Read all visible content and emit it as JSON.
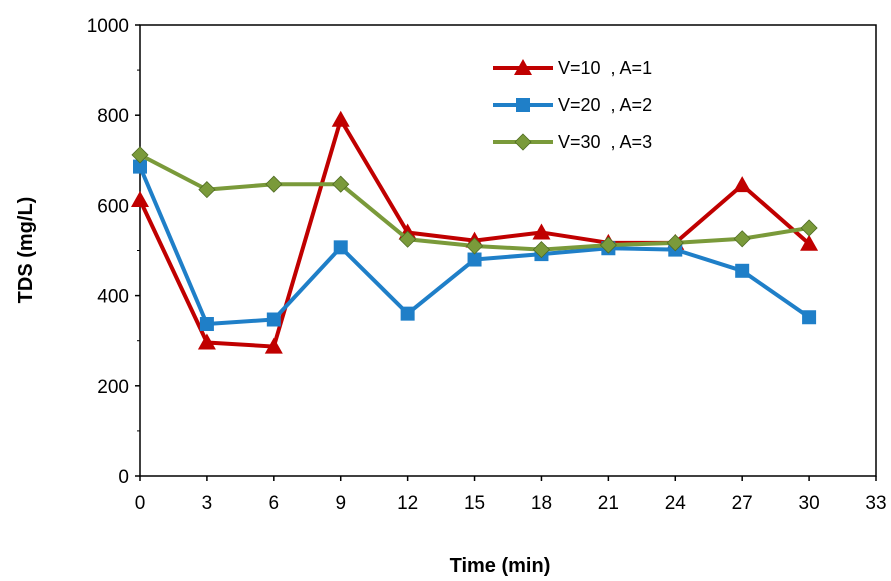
{
  "chart_data": {
    "type": "line",
    "title": "",
    "xlabel": "Time (min)",
    "ylabel": "TDS (mg/L)",
    "xlim": [
      0,
      33
    ],
    "ylim": [
      0,
      1000
    ],
    "xticks": [
      "0",
      "3",
      "6",
      "9",
      "12",
      "15",
      "18",
      "21",
      "24",
      "27",
      "30",
      "33"
    ],
    "yticks": [
      "0",
      "200",
      "400",
      "600",
      "800",
      "1000"
    ],
    "grid": false,
    "legend_position": "top-right",
    "x": [
      0,
      3,
      6,
      9,
      12,
      15,
      18,
      21,
      24,
      27,
      30
    ],
    "series": [
      {
        "name": "V=10  , A=1",
        "color": "#C00000",
        "marker": "triangle",
        "values": [
          612,
          296,
          287,
          790,
          540,
          522,
          540,
          517,
          517,
          645,
          515
        ]
      },
      {
        "name": "V=20  , A=2",
        "color": "#1F7FC8",
        "marker": "square",
        "values": [
          686,
          337,
          347,
          507,
          360,
          480,
          492,
          505,
          502,
          455,
          352
        ]
      },
      {
        "name": "V=30  , A=3",
        "color": "#7A9A3A",
        "marker": "diamond",
        "values": [
          712,
          635,
          647,
          647,
          525,
          510,
          502,
          512,
          517,
          526,
          550
        ]
      }
    ]
  }
}
